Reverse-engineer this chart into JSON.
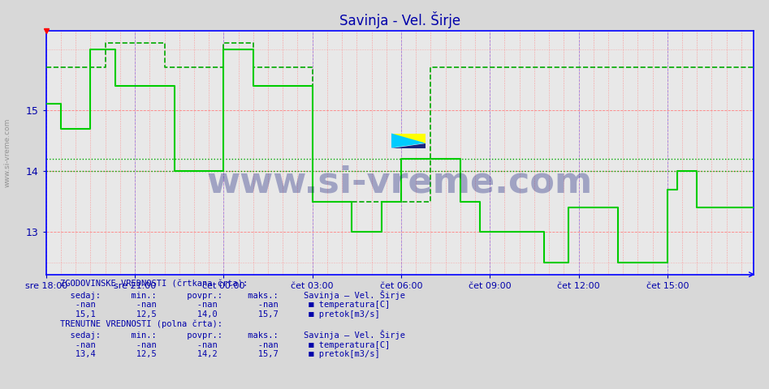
{
  "title": "Savinja - Vel. Širje",
  "title_color": "#0000aa",
  "bg_color": "#d8d8d8",
  "plot_bg_color": "#e8e8e8",
  "grid_color_red": "#ff8080",
  "grid_color_blue": "#8080ff",
  "xlabel_color": "#0000aa",
  "ylabel_color": "#0000aa",
  "axis_color": "#0000ff",
  "yticks": [
    13,
    14,
    15
  ],
  "ylim": [
    12.3,
    16.3
  ],
  "xtick_labels": [
    "sre 18:00",
    "sre 21:00",
    "čet 00:00",
    "čet 03:00",
    "čet 06:00",
    "čet 09:00",
    "čet 12:00",
    "čet 15:00"
  ],
  "xtick_positions": [
    0,
    36,
    72,
    108,
    144,
    180,
    216,
    252
  ],
  "total_points": 288,
  "watermark": "www.si-vreme.com",
  "watermark_color": "#1a237e",
  "watermark_alpha": 0.35,
  "ref_line1_value": 14.2,
  "ref_line1_color": "#00aa00",
  "ref_line2_value": 14.0,
  "ref_line2_color": "#00aa00",
  "solid_line_color": "#00cc00",
  "dashed_line_color": "#00aa00",
  "solid_line_values": [
    15.1,
    15.1,
    15.1,
    15.1,
    15.1,
    15.1,
    14.7,
    14.7,
    14.7,
    14.7,
    14.7,
    14.7,
    14.7,
    14.7,
    14.7,
    14.7,
    14.7,
    14.7,
    16.0,
    16.0,
    16.0,
    16.0,
    16.0,
    16.0,
    16.0,
    16.0,
    16.0,
    16.0,
    15.4,
    15.4,
    15.4,
    15.4,
    15.4,
    15.4,
    15.4,
    15.4,
    15.4,
    15.4,
    15.4,
    15.4,
    15.4,
    15.4,
    15.4,
    15.4,
    15.4,
    15.4,
    15.4,
    15.4,
    15.4,
    15.4,
    15.4,
    15.4,
    14.0,
    14.0,
    14.0,
    14.0,
    14.0,
    14.0,
    14.0,
    14.0,
    14.0,
    14.0,
    14.0,
    14.0,
    14.0,
    14.0,
    14.0,
    14.0,
    14.0,
    14.0,
    14.0,
    14.0,
    16.0,
    16.0,
    16.0,
    16.0,
    16.0,
    16.0,
    16.0,
    16.0,
    16.0,
    16.0,
    16.0,
    16.0,
    15.4,
    15.4,
    15.4,
    15.4,
    15.4,
    15.4,
    15.4,
    15.4,
    15.4,
    15.4,
    15.4,
    15.4,
    15.4,
    15.4,
    15.4,
    15.4,
    15.4,
    15.4,
    15.4,
    15.4,
    15.4,
    15.4,
    15.4,
    15.4,
    13.5,
    13.5,
    13.5,
    13.5,
    13.5,
    13.5,
    13.5,
    13.5,
    13.5,
    13.5,
    13.5,
    13.5,
    13.5,
    13.5,
    13.5,
    13.5,
    13.0,
    13.0,
    13.0,
    13.0,
    13.0,
    13.0,
    13.0,
    13.0,
    13.0,
    13.0,
    13.0,
    13.0,
    13.5,
    13.5,
    13.5,
    13.5,
    13.5,
    13.5,
    13.5,
    13.5,
    14.2,
    14.2,
    14.2,
    14.2,
    14.2,
    14.2,
    14.2,
    14.2,
    14.2,
    14.2,
    14.2,
    14.2,
    14.2,
    14.2,
    14.2,
    14.2,
    14.2,
    14.2,
    14.2,
    14.2,
    14.2,
    14.2,
    14.2,
    14.2,
    13.5,
    13.5,
    13.5,
    13.5,
    13.5,
    13.5,
    13.5,
    13.5,
    13.0,
    13.0,
    13.0,
    13.0,
    13.0,
    13.0,
    13.0,
    13.0,
    13.0,
    13.0,
    13.0,
    13.0,
    13.0,
    13.0,
    13.0,
    13.0,
    13.0,
    13.0,
    13.0,
    13.0,
    13.0,
    13.0,
    13.0,
    13.0,
    13.0,
    13.0,
    12.5,
    12.5,
    12.5,
    12.5,
    12.5,
    12.5,
    12.5,
    12.5,
    12.5,
    12.5,
    13.4,
    13.4,
    13.4,
    13.4,
    13.4,
    13.4,
    13.4,
    13.4,
    13.4,
    13.4,
    13.4,
    13.4,
    13.4,
    13.4,
    13.4,
    13.4,
    13.4,
    13.4,
    13.4,
    13.4,
    12.5,
    12.5,
    12.5,
    12.5,
    12.5,
    12.5,
    12.5,
    12.5,
    12.5,
    12.5,
    12.5,
    12.5,
    12.5,
    12.5,
    12.5,
    12.5,
    12.5,
    12.5,
    12.5,
    12.5,
    13.7,
    13.7,
    13.7,
    13.7,
    14.0,
    14.0,
    14.0,
    14.0,
    14.0,
    14.0,
    14.0,
    14.0,
    13.4,
    13.4,
    13.4,
    13.4,
    13.4,
    13.4,
    13.4,
    13.4,
    13.4,
    13.4,
    13.4,
    13.4,
    13.4,
    13.4,
    13.4,
    13.4,
    13.4,
    13.4,
    13.4,
    13.4,
    13.4,
    13.4,
    13.4,
    13.4
  ],
  "dashed_line_values": [
    15.7,
    15.7,
    15.7,
    15.7,
    15.7,
    15.7,
    15.7,
    15.7,
    15.7,
    15.7,
    15.7,
    15.7,
    15.7,
    15.7,
    15.7,
    15.7,
    15.7,
    15.7,
    15.7,
    15.7,
    15.7,
    15.7,
    15.7,
    15.7,
    16.1,
    16.1,
    16.1,
    16.1,
    16.1,
    16.1,
    16.1,
    16.1,
    16.1,
    16.1,
    16.1,
    16.1,
    16.1,
    16.1,
    16.1,
    16.1,
    16.1,
    16.1,
    16.1,
    16.1,
    16.1,
    16.1,
    16.1,
    16.1,
    15.7,
    15.7,
    15.7,
    15.7,
    15.7,
    15.7,
    15.7,
    15.7,
    15.7,
    15.7,
    15.7,
    15.7,
    15.7,
    15.7,
    15.7,
    15.7,
    15.7,
    15.7,
    15.7,
    15.7,
    15.7,
    15.7,
    15.7,
    15.7,
    16.1,
    16.1,
    16.1,
    16.1,
    16.1,
    16.1,
    16.1,
    16.1,
    16.1,
    16.1,
    16.1,
    16.1,
    15.7,
    15.7,
    15.7,
    15.7,
    15.7,
    15.7,
    15.7,
    15.7,
    15.7,
    15.7,
    15.7,
    15.7,
    15.7,
    15.7,
    15.7,
    15.7,
    15.7,
    15.7,
    15.7,
    15.7,
    15.7,
    15.7,
    15.7,
    15.7,
    13.5,
    13.5,
    13.5,
    13.5,
    13.5,
    13.5,
    13.5,
    13.5,
    13.5,
    13.5,
    13.5,
    13.5,
    13.5,
    13.5,
    13.5,
    13.5,
    13.5,
    13.5,
    13.5,
    13.5,
    13.5,
    13.5,
    13.5,
    13.5,
    13.5,
    13.5,
    13.5,
    13.5,
    13.5,
    13.5,
    13.5,
    13.5,
    13.5,
    13.5,
    13.5,
    13.5,
    13.5,
    13.5,
    13.5,
    13.5,
    13.5,
    13.5,
    13.5,
    13.5,
    13.5,
    13.5,
    13.5,
    13.5,
    15.7,
    15.7,
    15.7,
    15.7,
    15.7,
    15.7,
    15.7,
    15.7,
    15.7,
    15.7,
    15.7,
    15.7,
    15.7,
    15.7,
    15.7,
    15.7,
    15.7,
    15.7,
    15.7,
    15.7,
    15.7,
    15.7,
    15.7,
    15.7,
    15.7,
    15.7,
    15.7,
    15.7,
    15.7,
    15.7,
    15.7,
    15.7,
    15.7,
    15.7,
    15.7,
    15.7,
    15.7,
    15.7,
    15.7,
    15.7,
    15.7,
    15.7,
    15.7,
    15.7,
    15.7,
    15.7,
    15.7,
    15.7,
    15.7,
    15.7,
    15.7,
    15.7,
    15.7,
    15.7,
    15.7,
    15.7,
    15.7,
    15.7,
    15.7,
    15.7,
    15.7,
    15.7,
    15.7,
    15.7,
    15.7,
    15.7,
    15.7,
    15.7,
    15.7,
    15.7,
    15.7,
    15.7,
    15.7,
    15.7,
    15.7,
    15.7,
    15.7,
    15.7,
    15.7,
    15.7,
    15.7,
    15.7,
    15.7,
    15.7,
    15.7,
    15.7,
    15.7,
    15.7,
    15.7,
    15.7,
    15.7,
    15.7,
    15.7,
    15.7,
    15.7,
    15.7,
    15.7,
    15.7,
    15.7,
    15.7,
    15.7,
    15.7,
    15.7,
    15.7,
    15.7,
    15.7,
    15.7,
    15.7,
    15.7,
    15.7,
    15.7,
    15.7,
    15.7,
    15.7,
    15.7,
    15.7,
    15.7,
    15.7,
    15.7,
    15.7,
    15.7,
    15.7,
    15.7,
    15.7,
    15.7,
    15.7,
    15.7,
    15.7,
    15.7,
    15.7,
    15.7,
    15.7
  ],
  "legend_text_color": "#0000aa",
  "bottom_text_color": "#0000aa",
  "bottom_bg_color": "#ffffff",
  "logo_colors": [
    "#ffff00",
    "#00ccff",
    "#1a237e"
  ],
  "red_dot_x": 0,
  "red_dot_y": 16.3
}
